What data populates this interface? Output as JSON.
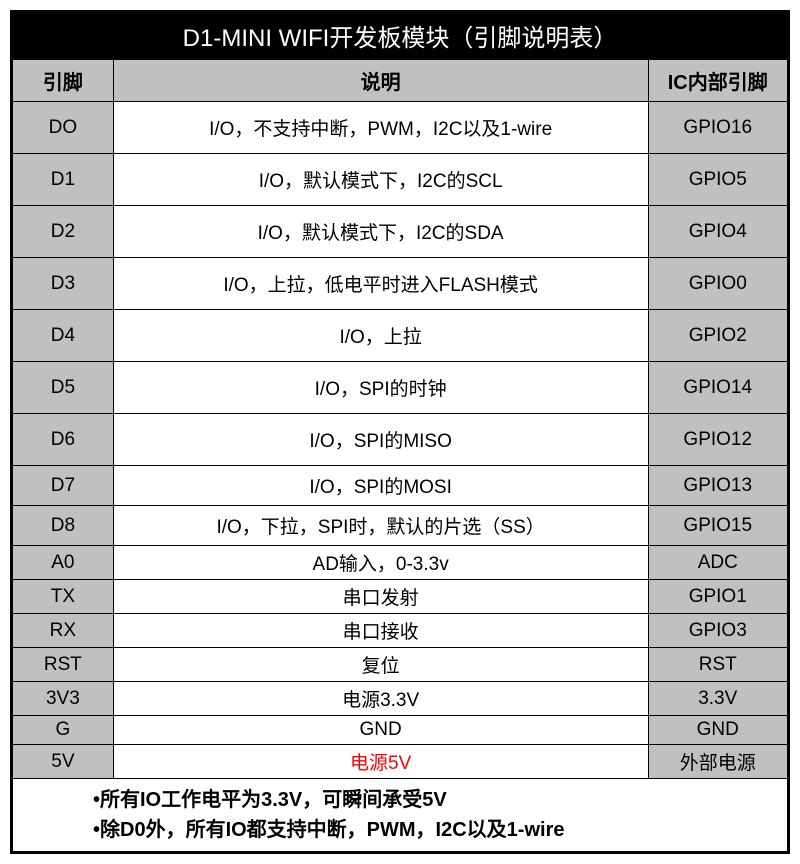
{
  "title": "D1-MINI WIFI开发板模块（引脚说明表）",
  "columns": [
    "引脚",
    "说明",
    "IC内部引脚"
  ],
  "rows": [
    {
      "pin": "DO",
      "desc": "I/O，不支持中断，PWM，I2C以及1-wire",
      "ic": "GPIO16",
      "tall": true
    },
    {
      "pin": "D1",
      "desc": "I/O，默认模式下，I2C的SCL",
      "ic": "GPIO5",
      "tall": true
    },
    {
      "pin": "D2",
      "desc": "I/O，默认模式下，I2C的SDA",
      "ic": "GPIO4",
      "tall": true
    },
    {
      "pin": "D3",
      "desc": "I/O，上拉，低电平时进入FLASH模式",
      "ic": "GPIO0",
      "tall": true
    },
    {
      "pin": "D4",
      "desc": "I/O，上拉",
      "ic": "GPIO2",
      "tall": true
    },
    {
      "pin": "D5",
      "desc": "I/O，SPI的时钟",
      "ic": "GPIO14",
      "tall": true
    },
    {
      "pin": "D6",
      "desc": "I/O，SPI的MISO",
      "ic": "GPIO12",
      "tall": true
    },
    {
      "pin": "D7",
      "desc": "I/O，SPI的MOSI",
      "ic": "GPIO13"
    },
    {
      "pin": "D8",
      "desc": "I/O，下拉，SPI时，默认的片选（SS）",
      "ic": "GPIO15"
    },
    {
      "pin": "A0",
      "desc": "AD输入，0-3.3v",
      "ic": "ADC",
      "short": true
    },
    {
      "pin": "TX",
      "desc": "串口发射",
      "ic": "GPIO1",
      "short": true
    },
    {
      "pin": "RX",
      "desc": "串口接收",
      "ic": "GPIO3",
      "short": true
    },
    {
      "pin": "RST",
      "desc": "复位",
      "ic": "RST",
      "short": true
    },
    {
      "pin": "3V3",
      "desc": "电源3.3V",
      "ic": "3.3V",
      "short": true
    },
    {
      "pin": "G",
      "desc": "GND",
      "ic": "GND",
      "short": true
    },
    {
      "pin": "5V",
      "desc": "电源5V",
      "ic": "外部电源",
      "short": true,
      "red": true
    }
  ],
  "footer_line1": "•所有IO工作电平为3.3V，可瞬间承受5V",
  "footer_line2": "•除D0外，所有IO都支持中断，PWM，I2C以及1-wire"
}
